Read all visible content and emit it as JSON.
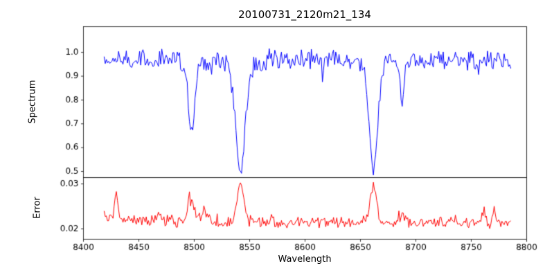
{
  "chart_data": {
    "type": "line",
    "title": "20100731_2120m21_134",
    "xlabel": "Wavelength",
    "xlim": [
      8400,
      8800
    ],
    "x_start": 8419,
    "x_end": 8786,
    "x_step": 1,
    "seed": 20100731,
    "grid": false,
    "legend": "none",
    "xticks": [
      {
        "v": 8400,
        "label": "8400"
      },
      {
        "v": 8450,
        "label": "8450"
      },
      {
        "v": 8500,
        "label": "8500"
      },
      {
        "v": 8550,
        "label": "8550"
      },
      {
        "v": 8600,
        "label": "8600"
      },
      {
        "v": 8650,
        "label": "8650"
      },
      {
        "v": 8700,
        "label": "8700"
      },
      {
        "v": 8750,
        "label": "8750"
      },
      {
        "v": 8800,
        "label": "8800"
      }
    ],
    "panels": [
      {
        "name": "spectrum",
        "ylabel": "Spectrum",
        "color": "#0000ff",
        "ylim": [
          0.474,
          1.108
        ],
        "yticks": [
          {
            "v": 1.0,
            "label": "1.0"
          },
          {
            "v": 0.9,
            "label": "0.9"
          },
          {
            "v": 0.8,
            "label": "0.8"
          },
          {
            "v": 0.7,
            "label": "0.7"
          },
          {
            "v": 0.6,
            "label": "0.6"
          },
          {
            "v": 0.5,
            "label": "0.5"
          }
        ],
        "continuum": 0.97,
        "noise_amp": 0.05,
        "dip_prob": 0.04,
        "dip_max": 0.05,
        "absorption_lines": [
          {
            "center": 8498,
            "depth": 0.325,
            "width": 3.0
          },
          {
            "center": 8542,
            "depth": 0.487,
            "width": 4.5
          },
          {
            "center": 8662,
            "depth": 0.475,
            "width": 4.0
          },
          {
            "center": 8688,
            "depth": 0.18,
            "width": 2.0
          }
        ]
      },
      {
        "name": "error",
        "ylabel": "Error",
        "color": "#ff0000",
        "ylim": [
          0.0177,
          0.0314
        ],
        "yticks": [
          {
            "v": 0.03,
            "label": "0.03"
          },
          {
            "v": 0.02,
            "label": "0.02"
          }
        ],
        "baseline": 0.0213,
        "noise_amp": 0.0015,
        "spike_prob": 0.05,
        "spike_max": 0.002,
        "left_edge_bump": {
          "amp": 0.0009,
          "decay": 70
        },
        "peaks": [
          {
            "center": 8430,
            "height": 0.0056,
            "width": 1.5
          },
          {
            "center": 8468,
            "height": 0.0013,
            "width": 3.0
          },
          {
            "center": 8498,
            "height": 0.0047,
            "width": 3.0
          },
          {
            "center": 8509,
            "height": 0.0028,
            "width": 2.0
          },
          {
            "center": 8542,
            "height": 0.0088,
            "width": 3.2
          },
          {
            "center": 8662,
            "height": 0.0078,
            "width": 3.0
          },
          {
            "center": 8688,
            "height": 0.0018,
            "width": 1.8
          },
          {
            "center": 8731,
            "height": 0.0012,
            "width": 1.5
          },
          {
            "center": 8760,
            "height": 0.0016,
            "width": 1.5
          },
          {
            "center": 8771,
            "height": 0.0024,
            "width": 1.2
          }
        ]
      }
    ]
  }
}
